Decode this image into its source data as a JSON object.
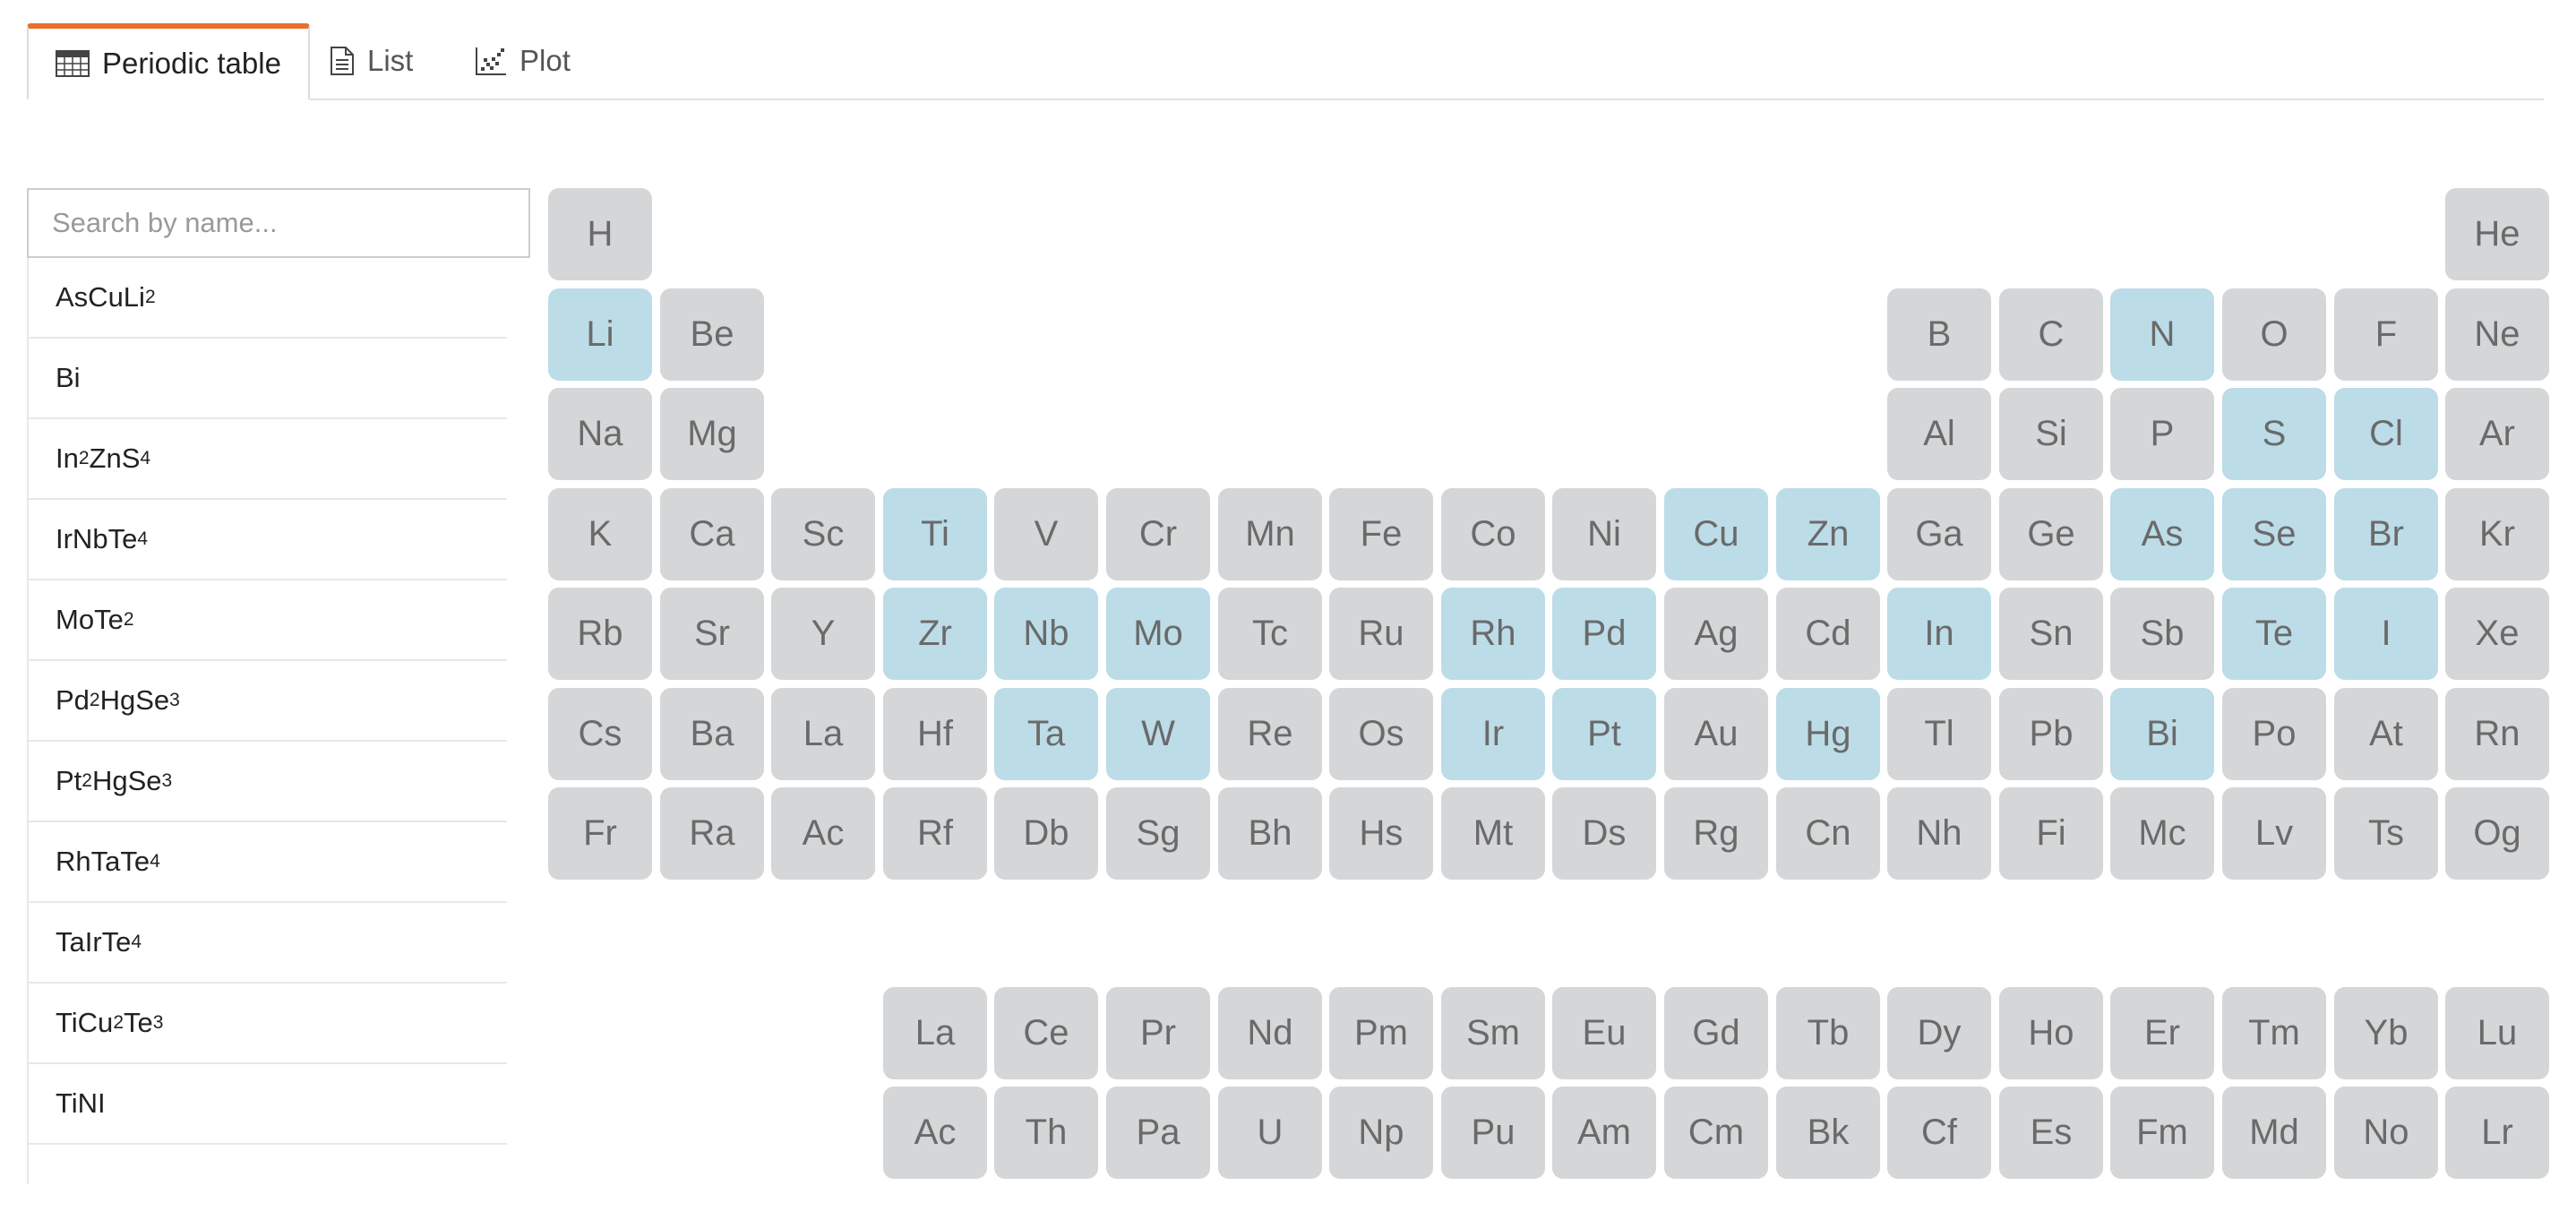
{
  "tabs": [
    {
      "label": "Periodic table",
      "icon": "table-icon",
      "active": true
    },
    {
      "label": "List",
      "icon": "document-icon",
      "active": false
    },
    {
      "label": "Plot",
      "icon": "scatter-plot-icon",
      "active": false
    }
  ],
  "search": {
    "placeholder": "Search by name..."
  },
  "materials": [
    [
      {
        "t": "AsCuLi"
      },
      {
        "s": "2"
      }
    ],
    [
      {
        "t": "Bi"
      }
    ],
    [
      {
        "t": "In"
      },
      {
        "s": "2"
      },
      {
        "t": "ZnS"
      },
      {
        "s": "4"
      }
    ],
    [
      {
        "t": "IrNbTe"
      },
      {
        "s": "4"
      }
    ],
    [
      {
        "t": "MoTe"
      },
      {
        "s": "2"
      }
    ],
    [
      {
        "t": "Pd"
      },
      {
        "s": "2"
      },
      {
        "t": "HgSe"
      },
      {
        "s": "3"
      }
    ],
    [
      {
        "t": "Pt"
      },
      {
        "s": "2"
      },
      {
        "t": "HgSe"
      },
      {
        "s": "3"
      }
    ],
    [
      {
        "t": "RhTaTe"
      },
      {
        "s": "4"
      }
    ],
    [
      {
        "t": "TaIrTe"
      },
      {
        "s": "4"
      }
    ],
    [
      {
        "t": "TiCu"
      },
      {
        "s": "2"
      },
      {
        "t": "Te"
      },
      {
        "s": "3"
      }
    ],
    [
      {
        "t": "TiNI"
      }
    ]
  ],
  "periodic_table": {
    "colors": {
      "default": "#d4d6d8",
      "highlighted": "#bcdce8",
      "text": "#6a6a6a"
    },
    "main_rows": [
      [
        "H",
        "",
        "",
        "",
        "",
        "",
        "",
        "",
        "",
        "",
        "",
        "",
        "",
        "",
        "",
        "",
        "",
        "He"
      ],
      [
        "Li",
        "Be",
        "",
        "",
        "",
        "",
        "",
        "",
        "",
        "",
        "",
        "",
        "B",
        "C",
        "N",
        "O",
        "F",
        "Ne"
      ],
      [
        "Na",
        "Mg",
        "",
        "",
        "",
        "",
        "",
        "",
        "",
        "",
        "",
        "",
        "Al",
        "Si",
        "P",
        "S",
        "Cl",
        "Ar"
      ],
      [
        "K",
        "Ca",
        "Sc",
        "Ti",
        "V",
        "Cr",
        "Mn",
        "Fe",
        "Co",
        "Ni",
        "Cu",
        "Zn",
        "Ga",
        "Ge",
        "As",
        "Se",
        "Br",
        "Kr"
      ],
      [
        "Rb",
        "Sr",
        "Y",
        "Zr",
        "Nb",
        "Mo",
        "Tc",
        "Ru",
        "Rh",
        "Pd",
        "Ag",
        "Cd",
        "In",
        "Sn",
        "Sb",
        "Te",
        "I",
        "Xe"
      ],
      [
        "Cs",
        "Ba",
        "La",
        "Hf",
        "Ta",
        "W",
        "Re",
        "Os",
        "Ir",
        "Pt",
        "Au",
        "Hg",
        "Tl",
        "Pb",
        "Bi",
        "Po",
        "At",
        "Rn"
      ],
      [
        "Fr",
        "Ra",
        "Ac",
        "Rf",
        "Db",
        "Sg",
        "Bh",
        "Hs",
        "Mt",
        "Ds",
        "Rg",
        "Cn",
        "Nh",
        "Fi",
        "Mc",
        "Lv",
        "Ts",
        "Og"
      ]
    ],
    "lanthanides": [
      "La",
      "Ce",
      "Pr",
      "Nd",
      "Pm",
      "Sm",
      "Eu",
      "Gd",
      "Tb",
      "Dy",
      "Ho",
      "Er",
      "Tm",
      "Yb",
      "Lu"
    ],
    "actinides": [
      "Ac",
      "Th",
      "Pa",
      "U",
      "Np",
      "Pu",
      "Am",
      "Cm",
      "Bk",
      "Cf",
      "Es",
      "Fm",
      "Md",
      "No",
      "Lr"
    ],
    "highlighted": [
      "Li",
      "N",
      "S",
      "Cl",
      "Ti",
      "Cu",
      "Zn",
      "As",
      "Se",
      "Br",
      "Zr",
      "Nb",
      "Mo",
      "Rh",
      "Pd",
      "In",
      "Te",
      "I",
      "Ta",
      "W",
      "Ir",
      "Pt",
      "Hg",
      "Bi"
    ]
  }
}
